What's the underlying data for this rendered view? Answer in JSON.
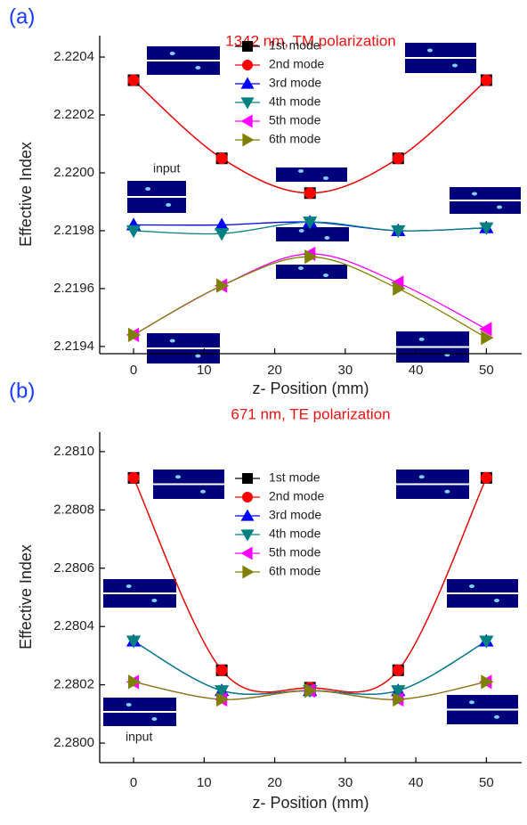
{
  "chart_data": [
    {
      "type": "line",
      "panel_label": "(a)",
      "title": "1342 nm, TM polarization",
      "x_label": "z- Position (mm)",
      "y_label": "Effective Index",
      "x": [
        0,
        12.5,
        25,
        37.5,
        50
      ],
      "series": [
        {
          "name": "1st mode",
          "color": "#000000",
          "marker": "square",
          "values": [
            2.22032,
            2.22005,
            2.21993,
            2.22005,
            2.22032
          ]
        },
        {
          "name": "2nd mode",
          "color": "#ff0000",
          "marker": "circle",
          "values": [
            2.22032,
            2.22005,
            2.21993,
            2.22005,
            2.22032
          ]
        },
        {
          "name": "3rd mode",
          "color": "#0000ff",
          "marker": "triangle-up",
          "values": [
            2.21982,
            2.21982,
            2.21983,
            2.2198,
            2.21981
          ]
        },
        {
          "name": "4th mode",
          "color": "#008080",
          "marker": "triangle-down",
          "values": [
            2.2198,
            2.21979,
            2.21983,
            2.2198,
            2.21981
          ]
        },
        {
          "name": "5th mode",
          "color": "#ff00ff",
          "marker": "triangle-left",
          "values": [
            2.21944,
            2.21961,
            2.21972,
            2.21962,
            2.21946
          ]
        },
        {
          "name": "6th mode",
          "color": "#808000",
          "marker": "triangle-right",
          "values": [
            2.21944,
            2.21961,
            2.21971,
            2.2196,
            2.21943
          ]
        }
      ],
      "annotations": [
        "input"
      ],
      "xlim": [
        -4.8,
        55
      ],
      "xticks": [
        0,
        10,
        20,
        30,
        40,
        50
      ],
      "ylim": [
        2.219375,
        2.220474
      ],
      "yticks": [
        2.2194,
        2.2196,
        2.2198,
        {
          "value": 2.22,
          "label": "2.2200"
        },
        2.2202,
        2.2204
      ],
      "legend": "upper center"
    },
    {
      "type": "line",
      "panel_label": "(b)",
      "title": "671 nm, TE polarization",
      "x_label": "z- Position (mm)",
      "y_label": "Effective Index",
      "x": [
        0,
        12.5,
        25,
        37.5,
        50
      ],
      "series": [
        {
          "name": "1st mode",
          "color": "#000000",
          "marker": "square",
          "values": [
            2.28091,
            2.28025,
            2.28019,
            2.28025,
            2.28091
          ]
        },
        {
          "name": "2nd mode",
          "color": "#ff0000",
          "marker": "circle",
          "values": [
            2.28091,
            2.28025,
            2.28019,
            2.28025,
            2.28091
          ]
        },
        {
          "name": "3rd mode",
          "color": "#0000ff",
          "marker": "triangle-up",
          "values": [
            2.28035,
            2.28018,
            2.28018,
            2.28018,
            2.28035
          ]
        },
        {
          "name": "4th mode",
          "color": "#008080",
          "marker": "triangle-down",
          "values": [
            2.28035,
            2.28018,
            2.28018,
            2.28018,
            2.28035
          ]
        },
        {
          "name": "5th mode",
          "color": "#ff00ff",
          "marker": "triangle-left",
          "values": [
            2.28021,
            2.28015,
            2.28018,
            2.28015,
            2.28021
          ]
        },
        {
          "name": "6th mode",
          "color": "#808000",
          "marker": "triangle-right",
          "values": [
            2.28021,
            2.28015,
            2.28018,
            2.28015,
            2.28021
          ]
        }
      ],
      "annotations": [
        "input"
      ],
      "xlim": [
        -4.8,
        55
      ],
      "xticks": [
        0,
        10,
        20,
        30,
        40,
        50
      ],
      "ylim": [
        2.279933,
        2.281067
      ],
      "yticks": [
        {
          "value": 2.28,
          "label": "2.2800"
        },
        2.2802,
        2.2804,
        2.2806,
        2.2808,
        {
          "value": 2.281,
          "label": "2.2810"
        }
      ],
      "legend": "upper center"
    }
  ]
}
